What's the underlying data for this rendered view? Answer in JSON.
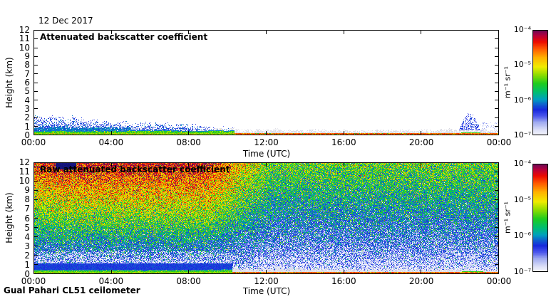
{
  "date_label": "12 Dec 2017",
  "footer_label": "Gual Pahari CL51 ceilometer",
  "colorbar": {
    "unit": "m⁻¹ sr⁻¹",
    "scale": "log",
    "min": "1e-7",
    "max": "1e-4",
    "tick_labels": [
      "10⁻⁴",
      "10⁻⁵",
      "10⁻⁶",
      "10⁻⁷"
    ]
  },
  "colormap_stops": [
    [
      0.0,
      "#F5F5FC"
    ],
    [
      0.05,
      "#DADEF7"
    ],
    [
      0.12,
      "#9FAAF0"
    ],
    [
      0.18,
      "#4A55EC"
    ],
    [
      0.24,
      "#1728DC"
    ],
    [
      0.29,
      "#0E5ECE"
    ],
    [
      0.34,
      "#00A0BE"
    ],
    [
      0.41,
      "#00BE6E"
    ],
    [
      0.49,
      "#1ECC1E"
    ],
    [
      0.57,
      "#8ADC00"
    ],
    [
      0.65,
      "#F0EC00"
    ],
    [
      0.74,
      "#FFB000"
    ],
    [
      0.82,
      "#FF5A00"
    ],
    [
      0.89,
      "#EC0A00"
    ],
    [
      0.95,
      "#B4003C"
    ],
    [
      1.0,
      "#6A0A58"
    ]
  ],
  "chart_data": [
    {
      "type": "heatmap",
      "title": "Attenuated backscatter coefficient",
      "xlabel": "Time (UTC)",
      "ylabel": "Height (km)",
      "x_tick_labels": [
        "00:00",
        "04:00",
        "08:00",
        "12:00",
        "16:00",
        "20:00",
        "00:00"
      ],
      "x_range_hours": [
        0,
        24
      ],
      "y_tick_labels": [
        "0",
        "1",
        "2",
        "3",
        "4",
        "5",
        "6",
        "7",
        "8",
        "9",
        "10",
        "11",
        "12"
      ],
      "y_range_km": [
        0,
        12
      ],
      "value_scale": "log10 backscatter, -7 to -4 (m-1 sr-1 1e-7..1e-4)",
      "features": {
        "background": "#FFFFFF",
        "gray_noise_band": {
          "envelope_km": [
            [
              0,
              1.05
            ],
            [
              4,
              0.9
            ],
            [
              8,
              0.8
            ],
            [
              12,
              0.7
            ],
            [
              16,
              0.6
            ],
            [
              20,
              0.58
            ],
            [
              21.5,
              0.72
            ],
            [
              24,
              0.62
            ]
          ],
          "shades": [
            "#E9E9F0",
            "#D5D5DE"
          ]
        },
        "surface_green_layer": {
          "top_km": 0.5,
          "end_hour": 9.7,
          "log10_value": -5.45
        },
        "aerosol_blue_layer": {
          "envelope_km": [
            [
              0,
              2.3
            ],
            [
              2,
              1.85
            ],
            [
              4,
              1.45
            ],
            [
              6,
              1.3
            ],
            [
              8,
              1.15
            ],
            [
              10,
              0.9
            ],
            [
              10.6,
              0.85
            ]
          ],
          "end_hour": 10.6,
          "log10_value": -6.45
        },
        "evening_cloud": {
          "start_hour": 21.95,
          "end_hour": 23.1,
          "base_km": 0.55,
          "peak_km": 2.6,
          "log10_value": -6.55
        },
        "evening_surface_green": {
          "start_hour": 22.05,
          "end_hour": 23.05,
          "top_km": 0.28,
          "log10_value": -5.5
        },
        "surface_red_line": {
          "thickness_km": 0.17,
          "green_until_hour": 9.7,
          "log10_green": -5.3,
          "log10_red": -4.55
        }
      }
    },
    {
      "type": "heatmap",
      "title": "Raw attenuated backscatter coefficient",
      "xlabel": "Time (UTC)",
      "ylabel": "Height (km)",
      "x_tick_labels": [
        "00:00",
        "04:00",
        "08:00",
        "12:00",
        "16:00",
        "20:00",
        "00:00"
      ],
      "x_range_hours": [
        0,
        24
      ],
      "y_tick_labels": [
        "0",
        "1",
        "2",
        "3",
        "4",
        "5",
        "6",
        "7",
        "8",
        "9",
        "10",
        "11",
        "12"
      ],
      "y_range_km": [
        0,
        12
      ],
      "value_scale": "log10 backscatter, -7 to -4 (m-1 sr-1 1e-7..1e-4)",
      "features": {
        "noise_field": {
          "base_log10": -7.05,
          "height_gain": 1.62,
          "morning_extra_gain": 1.18,
          "height_exponent": 0.78,
          "morning_full_until_hour": 9.0,
          "transition_end_hour": 12.3,
          "sigma": 0.38
        },
        "gray_noise_band": {
          "envelope_km": [
            [
              10.8,
              0.8
            ],
            [
              12,
              0.75
            ],
            [
              16,
              0.62
            ],
            [
              20,
              0.6
            ],
            [
              21.5,
              0.7
            ],
            [
              24,
              0.6
            ]
          ],
          "shades": [
            "#E7E7EE",
            "#D6D6DF"
          ]
        },
        "surface_green_layer": {
          "top_km": 0.42,
          "end_hour": 10.6,
          "log10_value": -5.45
        },
        "dark_blue_band": {
          "top_km": 1.15,
          "log10_value": -6.25
        },
        "white_speckle_zone": {
          "top_km": 2.4
        },
        "evening_surface_green": {
          "start_hour": 22.1,
          "end_hour": 23.2,
          "top_km": 0.3,
          "log10_value": -5.5
        },
        "evening_echo_column": {
          "start_hour": 22.25,
          "end_hour": 22.9,
          "top_km": 2.1
        },
        "surface_red_line": {
          "thickness_km": 0.16,
          "green_until_hour": 10.6,
          "log10_green": -5.3,
          "log10_red": -4.55
        },
        "data_gap_block": {
          "start_hour": 1.15,
          "end_hour": 2.2,
          "bottom_km": 11.3,
          "color": "#14147A"
        }
      }
    }
  ]
}
